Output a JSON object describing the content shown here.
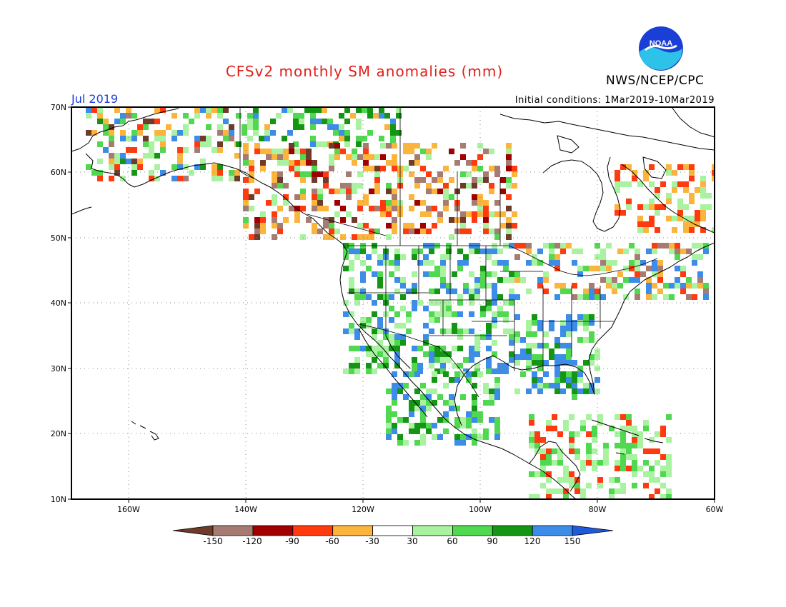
{
  "title": "CFSv2 monthly SM anomalies (mm)",
  "organization": "NWS/NCEP/CPC",
  "logo_text": "NOAA",
  "valid_month": "Jul 2019",
  "initial_conditions": "Initial conditions: 1Mar2019-10Mar2019",
  "lat_labels": [
    "70N",
    "60N",
    "50N",
    "40N",
    "30N",
    "20N",
    "10N"
  ],
  "lon_labels": [
    "160W",
    "140W",
    "120W",
    "100W",
    "80W",
    "60W"
  ],
  "legend": {
    "tick_labels": [
      "-150",
      "-120",
      "-90",
      "-60",
      "-30",
      "30",
      "60",
      "90",
      "120",
      "150"
    ],
    "colors": [
      "#6e3b2b",
      "#a67c72",
      "#a10000",
      "#ff3a0f",
      "#fbb43c",
      "#ffffff",
      "#a8f2a0",
      "#50d850",
      "#149614",
      "#3c8ce8",
      "#1e5adc"
    ]
  },
  "colors": {
    "title": "#e0201b",
    "month": "#1a3fd6",
    "ocean": "#ffffff",
    "gridline": "#888888"
  }
}
